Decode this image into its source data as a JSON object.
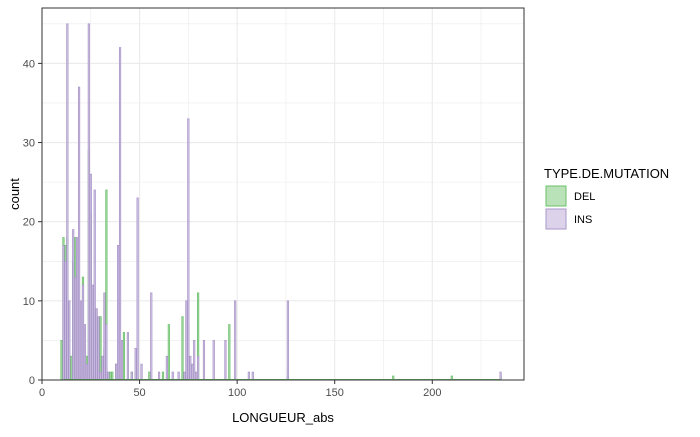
{
  "chart_data": {
    "type": "bar",
    "xlabel": "LONGUEUR_abs",
    "ylabel": "count",
    "xlim": [
      0,
      247
    ],
    "ylim": [
      0,
      47
    ],
    "xticks": [
      0,
      50,
      100,
      150,
      200
    ],
    "yticks": [
      0,
      10,
      20,
      30,
      40
    ],
    "grid": true,
    "legend": {
      "title": "TYPE.DE.MUTATION",
      "position": "right",
      "entries": [
        "DEL",
        "INS"
      ]
    },
    "colors": {
      "DEL": "#b9e2b9",
      "DEL_stroke": "#6cbf6c",
      "INS": "#dcd2ea",
      "INS_stroke": "#a995c9",
      "panel_border": "#333333",
      "grid": "#ebebeb"
    },
    "series": [
      {
        "name": "DEL",
        "x": [
          10,
          11,
          12,
          13,
          15,
          16,
          17,
          18,
          20,
          21,
          22,
          23,
          24,
          25,
          26,
          28,
          29,
          30,
          31,
          32,
          33,
          35,
          36,
          38,
          40,
          42,
          46,
          48,
          55,
          62,
          65,
          72,
          75,
          80,
          96,
          126,
          180,
          210,
          235
        ],
        "values": [
          5,
          18,
          17,
          18,
          3,
          15,
          18,
          16,
          6,
          13,
          3,
          3,
          29,
          21,
          7,
          8,
          5,
          8,
          2,
          4,
          24,
          1,
          1,
          2,
          5,
          6,
          1,
          1,
          1,
          1,
          7,
          8,
          7,
          11,
          7,
          0.5,
          0.5,
          0.5,
          0.5
        ]
      },
      {
        "name": "INS",
        "x": [
          11,
          12,
          13,
          14,
          16,
          17,
          18,
          19,
          20,
          21,
          22,
          23,
          24,
          25,
          26,
          27,
          28,
          29,
          30,
          31,
          32,
          33,
          34,
          38,
          39,
          40,
          41,
          44,
          46,
          48,
          49,
          51,
          56,
          60,
          64,
          67,
          70,
          73,
          74,
          75,
          76,
          77,
          78,
          79,
          80,
          83,
          88,
          94,
          99,
          106,
          108,
          126,
          235
        ],
        "values": [
          17,
          15,
          45,
          10,
          19,
          13,
          18,
          37,
          10,
          12,
          7,
          2,
          45,
          26,
          12,
          24,
          9,
          8,
          1,
          3,
          11,
          7,
          1,
          2,
          17,
          42,
          5,
          6,
          1,
          4,
          23,
          2,
          11,
          1,
          3,
          1,
          1,
          1,
          10,
          33,
          3,
          2,
          5,
          1,
          3,
          5,
          5,
          5,
          10,
          1,
          1,
          10,
          1
        ]
      }
    ]
  }
}
